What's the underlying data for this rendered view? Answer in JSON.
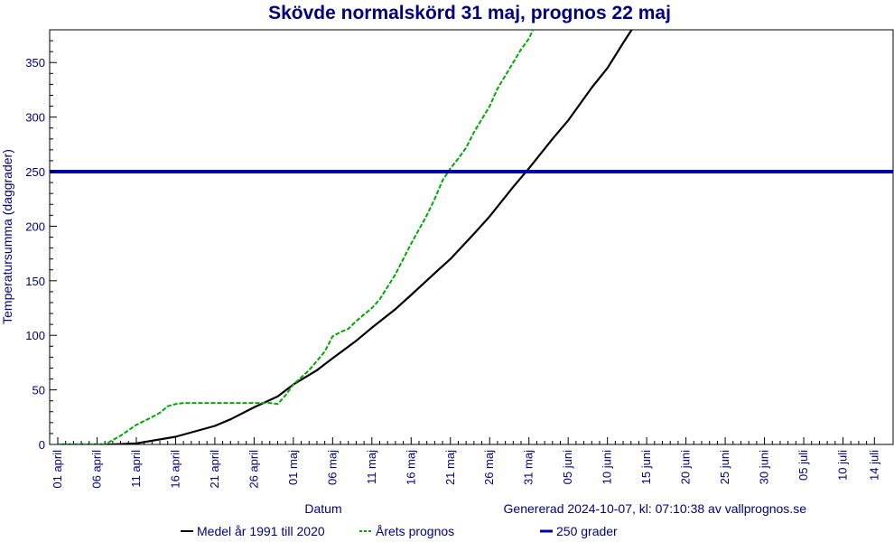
{
  "chart_data": {
    "type": "line",
    "title": "Skövde normalskörd 31 maj, prognos 22 maj",
    "xlabel": "Datum",
    "ylabel": "Temperatursumma (daggrader)",
    "footnote": "Genererad 2024-10-07, kl: 07:10:38 av vallprognos.se",
    "ylim": [
      0,
      380
    ],
    "yticks": [
      0,
      50,
      100,
      150,
      200,
      250,
      300,
      350
    ],
    "xlim": [
      0,
      105
    ],
    "x_ticks": [
      {
        "x": 0,
        "label": "01 april"
      },
      {
        "x": 5,
        "label": "06 april"
      },
      {
        "x": 10,
        "label": "11 april"
      },
      {
        "x": 15,
        "label": "16 april"
      },
      {
        "x": 20,
        "label": "21 april"
      },
      {
        "x": 25,
        "label": "26 april"
      },
      {
        "x": 30,
        "label": "01 maj"
      },
      {
        "x": 35,
        "label": "06 maj"
      },
      {
        "x": 40,
        "label": "11 maj"
      },
      {
        "x": 45,
        "label": "16 maj"
      },
      {
        "x": 50,
        "label": "21 maj"
      },
      {
        "x": 55,
        "label": "26 maj"
      },
      {
        "x": 60,
        "label": "31 maj"
      },
      {
        "x": 65,
        "label": "05 juni"
      },
      {
        "x": 70,
        "label": "10 juni"
      },
      {
        "x": 75,
        "label": "15 juni"
      },
      {
        "x": 80,
        "label": "20 juni"
      },
      {
        "x": 85,
        "label": "25 juni"
      },
      {
        "x": 90,
        "label": "30 juni"
      },
      {
        "x": 95,
        "label": "05 juli"
      },
      {
        "x": 100,
        "label": "10 juli"
      },
      {
        "x": 104,
        "label": "14 juli"
      }
    ],
    "series": [
      {
        "name": "Medel år 1991 till 2020",
        "color": "#000000",
        "style": "solid",
        "points": [
          [
            0,
            0
          ],
          [
            5,
            0
          ],
          [
            7,
            0
          ],
          [
            10,
            1
          ],
          [
            15,
            7
          ],
          [
            20,
            17
          ],
          [
            22,
            23
          ],
          [
            25,
            34
          ],
          [
            28,
            44
          ],
          [
            30,
            55
          ],
          [
            33,
            68
          ],
          [
            35,
            79
          ],
          [
            38,
            95
          ],
          [
            40,
            107
          ],
          [
            43,
            124
          ],
          [
            45,
            137
          ],
          [
            48,
            157
          ],
          [
            50,
            170
          ],
          [
            53,
            193
          ],
          [
            55,
            209
          ],
          [
            58,
            236
          ],
          [
            60,
            253
          ],
          [
            63,
            280
          ],
          [
            65,
            297
          ],
          [
            68,
            327
          ],
          [
            70,
            345
          ],
          [
            72,
            368
          ],
          [
            74,
            390
          ]
        ]
      },
      {
        "name": "Årets prognos",
        "color": "#00aa00",
        "style": "dashed",
        "points": [
          [
            0,
            0
          ],
          [
            6,
            0
          ],
          [
            8,
            8
          ],
          [
            10,
            18
          ],
          [
            12,
            25
          ],
          [
            13,
            29
          ],
          [
            14,
            35
          ],
          [
            15,
            37
          ],
          [
            16,
            38
          ],
          [
            20,
            38
          ],
          [
            25,
            38
          ],
          [
            27,
            38
          ],
          [
            28,
            37
          ],
          [
            29,
            45
          ],
          [
            30,
            55
          ],
          [
            32,
            68
          ],
          [
            34,
            85
          ],
          [
            35,
            99
          ],
          [
            36,
            103
          ],
          [
            37,
            106
          ],
          [
            38,
            113
          ],
          [
            40,
            125
          ],
          [
            41,
            133
          ],
          [
            43,
            156
          ],
          [
            45,
            184
          ],
          [
            47,
            210
          ],
          [
            48,
            225
          ],
          [
            49,
            242
          ],
          [
            50,
            253
          ],
          [
            51,
            262
          ],
          [
            52,
            272
          ],
          [
            53,
            286
          ],
          [
            55,
            310
          ],
          [
            56,
            326
          ],
          [
            58,
            350
          ],
          [
            59,
            362
          ],
          [
            60,
            372
          ],
          [
            61,
            387
          ]
        ]
      },
      {
        "name": "250 grader",
        "color": "#0000aa",
        "style": "solid",
        "points": [
          [
            0,
            250
          ],
          [
            105,
            250
          ]
        ]
      }
    ],
    "legend_placement": "bottom",
    "grid": false
  }
}
